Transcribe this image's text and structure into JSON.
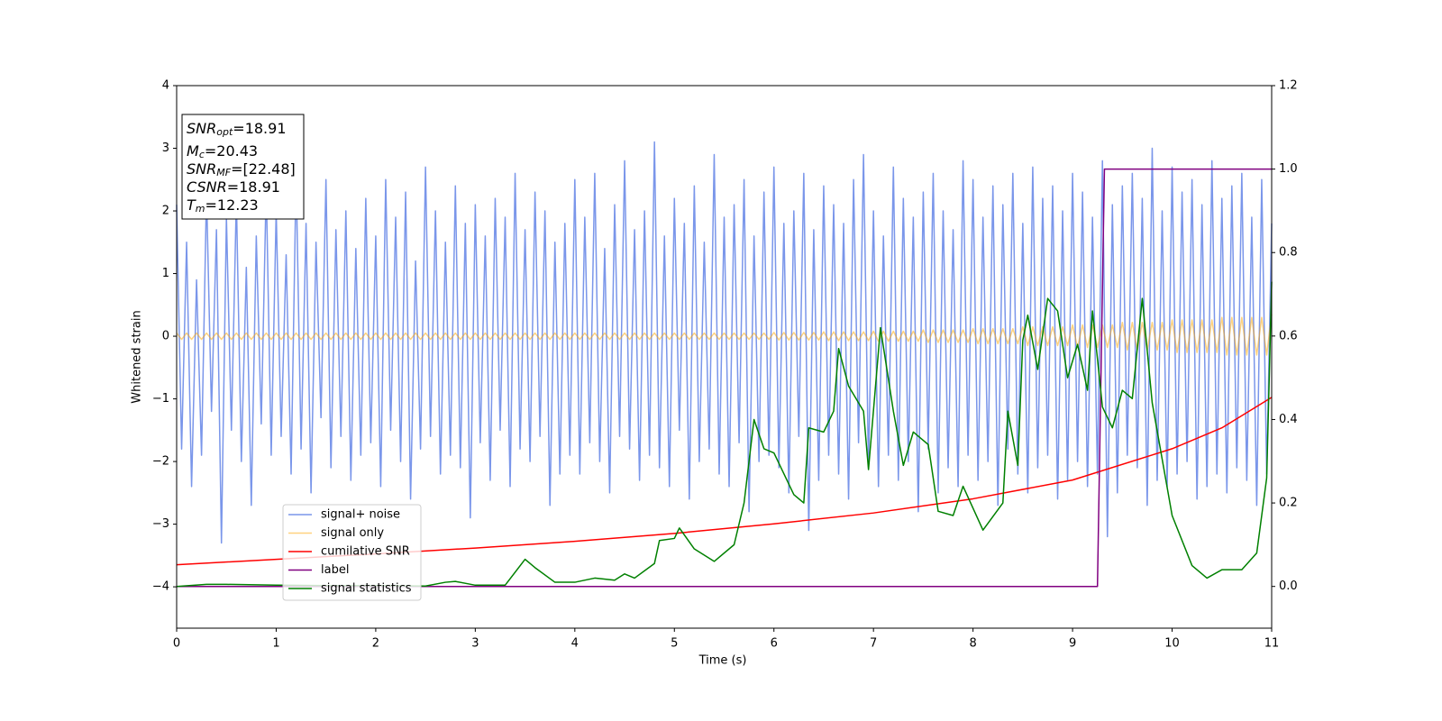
{
  "chart_data": {
    "type": "line",
    "xlabel": "Time (s)",
    "ylabel": "Whitened strain",
    "xlim": [
      0,
      11
    ],
    "ylim": [
      -4.66,
      4
    ],
    "y2lim": [
      -0.1,
      1.2
    ],
    "xticks": [
      0,
      1,
      2,
      3,
      4,
      5,
      6,
      7,
      8,
      9,
      10,
      11
    ],
    "yticks": [
      {
        "value": -4,
        "label": "−4"
      },
      {
        "value": -3,
        "label": "−3"
      },
      {
        "value": -2,
        "label": "−2"
      },
      {
        "value": -1,
        "label": "−1"
      },
      0,
      1,
      2,
      3,
      4
    ],
    "y2ticks": [
      {
        "value": 0,
        "label": "0.0"
      },
      0.2,
      0.4,
      0.6,
      0.8,
      {
        "value": 1,
        "label": "1.0"
      },
      1.2
    ],
    "grid": false,
    "x": [
      0,
      0.05,
      0.1,
      0.15,
      0.2,
      0.25,
      0.3,
      0.35,
      0.4,
      0.45,
      0.5,
      0.55,
      0.6,
      0.65,
      0.7,
      0.75,
      0.8,
      0.85,
      0.9,
      0.95,
      1,
      1.05,
      1.1,
      1.15,
      1.2,
      1.25,
      1.3,
      1.35,
      1.4,
      1.45,
      1.5,
      1.55,
      1.6,
      1.65,
      1.7,
      1.75,
      1.8,
      1.85,
      1.9,
      1.95,
      2,
      2.05,
      2.1,
      2.15,
      2.2,
      2.25,
      2.3,
      2.35,
      2.4,
      2.45,
      2.5,
      2.55,
      2.6,
      2.65,
      2.7,
      2.75,
      2.8,
      2.85,
      2.9,
      2.95,
      3,
      3.05,
      3.1,
      3.15,
      3.2,
      3.25,
      3.3,
      3.35,
      3.4,
      3.45,
      3.5,
      3.55,
      3.6,
      3.65,
      3.7,
      3.75,
      3.8,
      3.85,
      3.9,
      3.95,
      4,
      4.05,
      4.1,
      4.15,
      4.2,
      4.25,
      4.3,
      4.35,
      4.4,
      4.45,
      4.5,
      4.55,
      4.6,
      4.65,
      4.7,
      4.75,
      4.8,
      4.85,
      4.9,
      4.95,
      5,
      5.05,
      5.1,
      5.15,
      5.2,
      5.25,
      5.3,
      5.35,
      5.4,
      5.45,
      5.5,
      5.55,
      5.6,
      5.65,
      5.7,
      5.75,
      5.8,
      5.85,
      5.9,
      5.95,
      6,
      6.05,
      6.1,
      6.15,
      6.2,
      6.25,
      6.3,
      6.35,
      6.4,
      6.45,
      6.5,
      6.55,
      6.6,
      6.65,
      6.7,
      6.75,
      6.8,
      6.85,
      6.9,
      6.95,
      7,
      7.05,
      7.1,
      7.15,
      7.2,
      7.25,
      7.3,
      7.35,
      7.4,
      7.45,
      7.5,
      7.55,
      7.6,
      7.65,
      7.7,
      7.75,
      7.8,
      7.85,
      7.9,
      7.95,
      8,
      8.05,
      8.1,
      8.15,
      8.2,
      8.25,
      8.3,
      8.35,
      8.4,
      8.45,
      8.5,
      8.55,
      8.6,
      8.65,
      8.7,
      8.75,
      8.8,
      8.85,
      8.9,
      8.95,
      9,
      9.05,
      9.1,
      9.15,
      9.2,
      9.25,
      9.3,
      9.35,
      9.4,
      9.45,
      9.5,
      9.55,
      9.6,
      9.65,
      9.7,
      9.75,
      9.8,
      9.85,
      9.9,
      9.95,
      10,
      10.05,
      10.1,
      10.15,
      10.2,
      10.25,
      10.3,
      10.35,
      10.4,
      10.45,
      10.5,
      10.55,
      10.6,
      10.65,
      10.7,
      10.75,
      10.8,
      10.85,
      10.9,
      10.95,
      11
    ],
    "series": [
      {
        "name": "signal+ noise",
        "color": "#4169e1",
        "alpha": 0.7,
        "axis": "y",
        "values": [
          2.1,
          -1.8,
          1.5,
          -2.4,
          0.9,
          -1.9,
          2.3,
          -1.2,
          1.7,
          -3.3,
          1.9,
          -1.5,
          2.2,
          -2.0,
          1.1,
          -2.7,
          1.6,
          -1.4,
          2.4,
          -1.9,
          2.0,
          -1.6,
          1.3,
          -2.2,
          2.6,
          -1.8,
          1.8,
          -2.5,
          1.5,
          -1.3,
          2.5,
          -2.1,
          1.7,
          -1.6,
          2.0,
          -2.3,
          1.4,
          -1.9,
          2.2,
          -1.7,
          1.6,
          -2.4,
          2.5,
          -1.5,
          1.9,
          -2.0,
          2.3,
          -2.6,
          1.2,
          -1.8,
          2.7,
          -1.6,
          2.0,
          -2.2,
          1.5,
          -1.9,
          2.4,
          -2.1,
          1.8,
          -2.9,
          2.1,
          -1.7,
          1.6,
          -2.3,
          2.2,
          -1.5,
          1.9,
          -2.4,
          2.6,
          -1.8,
          1.7,
          -2.0,
          2.3,
          -1.6,
          2.0,
          -2.7,
          1.5,
          -2.2,
          1.8,
          -1.9,
          2.5,
          -2.2,
          1.9,
          -1.7,
          2.6,
          -2.0,
          1.4,
          -2.5,
          2.1,
          -1.6,
          2.8,
          -1.8,
          1.7,
          -2.3,
          2.0,
          -1.9,
          3.1,
          -2.1,
          1.6,
          -2.4,
          2.2,
          -1.5,
          1.8,
          -2.6,
          2.4,
          -2.0,
          1.5,
          -1.8,
          2.9,
          -2.2,
          1.9,
          -2.4,
          2.1,
          -1.7,
          2.5,
          -2.8,
          1.6,
          -2.0,
          2.3,
          -1.9,
          2.7,
          -2.1,
          1.8,
          -2.5,
          2.0,
          -1.6,
          2.6,
          -3.1,
          1.7,
          -2.3,
          2.4,
          -1.9,
          2.1,
          -2.2,
          1.8,
          -2.6,
          2.5,
          -1.7,
          2.9,
          -2.1,
          2.0,
          -2.4,
          1.6,
          -1.9,
          2.7,
          -2.3,
          2.2,
          -2.0,
          1.9,
          -2.8,
          2.3,
          -1.8,
          2.6,
          -2.5,
          2.0,
          -2.1,
          1.7,
          -2.4,
          2.8,
          -1.9,
          2.5,
          -2.3,
          1.9,
          -2.0,
          2.4,
          -2.7,
          2.1,
          -1.8,
          2.6,
          -2.2,
          1.8,
          -2.5,
          2.7,
          -2.1,
          2.2,
          -1.9,
          2.4,
          -2.6,
          2.0,
          -2.3,
          2.6,
          -2.0,
          2.3,
          -2.4,
          1.9,
          -2.2,
          2.8,
          -3.2,
          2.1,
          -2.5,
          2.4,
          -1.9,
          2.6,
          -2.1,
          2.2,
          -2.7,
          3.0,
          -2.3,
          2.0,
          -2.4,
          2.7,
          -2.2,
          2.3,
          -2.0,
          2.5,
          -2.6,
          2.1,
          -2.4,
          2.8,
          -2.2,
          2.2,
          -2.5,
          2.4,
          -2.1,
          2.6,
          -2.3,
          1.9,
          -2.7,
          2.5,
          -2.2,
          1.8
        ]
      },
      {
        "name": "signal only",
        "color": "#ffa500",
        "alpha": 0.5,
        "axis": "y",
        "values": [
          0.05,
          -0.05,
          0.05,
          -0.05,
          0.05,
          -0.05,
          0.05,
          -0.05,
          0.05,
          -0.05,
          0.05,
          -0.05,
          0.05,
          -0.05,
          0.05,
          -0.05,
          0.05,
          -0.05,
          0.05,
          -0.05,
          0.05,
          -0.05,
          0.05,
          -0.05,
          0.05,
          -0.05,
          0.05,
          -0.05,
          0.05,
          -0.05,
          0.05,
          -0.05,
          0.05,
          -0.05,
          0.05,
          -0.05,
          0.05,
          -0.05,
          0.05,
          -0.05,
          0.05,
          -0.05,
          0.05,
          -0.05,
          0.05,
          -0.05,
          0.05,
          -0.05,
          0.05,
          -0.05,
          0.05,
          -0.05,
          0.05,
          -0.05,
          0.05,
          -0.05,
          0.05,
          -0.05,
          0.05,
          -0.05,
          0.05,
          -0.05,
          0.05,
          -0.05,
          0.05,
          -0.05,
          0.05,
          -0.05,
          0.05,
          -0.05,
          0.05,
          -0.05,
          0.05,
          -0.05,
          0.05,
          -0.05,
          0.05,
          -0.05,
          0.05,
          -0.05,
          0.05,
          -0.05,
          0.05,
          -0.05,
          0.05,
          -0.05,
          0.05,
          -0.05,
          0.05,
          -0.05,
          0.05,
          -0.05,
          0.05,
          -0.05,
          0.05,
          -0.05,
          0.05,
          -0.05,
          0.05,
          -0.05,
          0.05,
          -0.05,
          0.05,
          -0.05,
          0.05,
          -0.05,
          0.05,
          -0.05,
          0.05,
          -0.05,
          0.05,
          -0.05,
          0.05,
          -0.05,
          0.05,
          -0.05,
          0.05,
          -0.05,
          0.05,
          -0.05,
          0.06,
          -0.06,
          0.06,
          -0.06,
          0.06,
          -0.06,
          0.06,
          -0.06,
          0.06,
          -0.06,
          0.07,
          -0.07,
          0.07,
          -0.07,
          0.07,
          -0.07,
          0.07,
          -0.07,
          0.07,
          -0.07,
          0.08,
          -0.08,
          0.08,
          -0.08,
          0.08,
          -0.08,
          0.08,
          -0.08,
          0.08,
          -0.08,
          0.1,
          -0.1,
          0.1,
          -0.1,
          0.1,
          -0.1,
          0.1,
          -0.1,
          0.1,
          -0.1,
          0.12,
          -0.12,
          0.12,
          -0.12,
          0.12,
          -0.12,
          0.12,
          -0.12,
          0.12,
          -0.12,
          0.15,
          -0.15,
          0.15,
          -0.15,
          0.15,
          -0.15,
          0.15,
          -0.15,
          0.15,
          -0.15,
          0.18,
          -0.18,
          0.18,
          -0.18,
          0.18,
          -0.18,
          0.18,
          -0.18,
          0.18,
          -0.18,
          0.22,
          -0.22,
          0.22,
          -0.22,
          0.22,
          -0.22,
          0.22,
          -0.22,
          0.22,
          -0.22,
          0.26,
          -0.26,
          0.26,
          -0.26,
          0.26,
          -0.26,
          0.26,
          -0.26,
          0.26,
          -0.26,
          0.3,
          -0.3,
          0.3,
          -0.3,
          0.3,
          -0.3,
          0.3,
          -0.3,
          0.3,
          -0.3,
          0.35
        ]
      },
      {
        "name": "cumilative SNR",
        "color": "#ff0000",
        "alpha": 1,
        "axis": "y2",
        "x": [
          0,
          1,
          2,
          3,
          4,
          5,
          6,
          7,
          8,
          9,
          10,
          10.5,
          11
        ],
        "values": [
          0.052,
          0.065,
          0.078,
          0.092,
          0.108,
          0.127,
          0.15,
          0.176,
          0.21,
          0.255,
          0.33,
          0.38,
          0.453
        ]
      },
      {
        "name": "label",
        "color": "#800080",
        "alpha": 1,
        "axis": "y2",
        "x": [
          0,
          9.25,
          9.32,
          11
        ],
        "values": [
          0,
          0,
          1,
          1
        ]
      },
      {
        "name": "signal statistics",
        "color": "#008000",
        "alpha": 1,
        "axis": "y2",
        "x": [
          0,
          0.3,
          0.5,
          1,
          1.5,
          2,
          2.5,
          2.7,
          2.8,
          3,
          3.3,
          3.5,
          3.6,
          3.8,
          4,
          4.2,
          4.4,
          4.5,
          4.6,
          4.8,
          4.85,
          5,
          5.05,
          5.2,
          5.4,
          5.6,
          5.7,
          5.8,
          5.9,
          6,
          6.2,
          6.3,
          6.35,
          6.5,
          6.6,
          6.65,
          6.75,
          6.9,
          6.95,
          7.07,
          7.2,
          7.3,
          7.4,
          7.55,
          7.65,
          7.8,
          7.9,
          8.1,
          8.3,
          8.35,
          8.45,
          8.5,
          8.55,
          8.65,
          8.75,
          8.85,
          8.95,
          9.05,
          9.15,
          9.2,
          9.3,
          9.4,
          9.5,
          9.6,
          9.7,
          9.8,
          10,
          10.2,
          10.35,
          10.5,
          10.7,
          10.85,
          10.95,
          11
        ],
        "values": [
          0,
          0.005,
          0.005,
          0.003,
          0.002,
          0.002,
          0.001,
          0.01,
          0.012,
          0.003,
          0.003,
          0.065,
          0.045,
          0.01,
          0.01,
          0.02,
          0.015,
          0.03,
          0.02,
          0.055,
          0.11,
          0.115,
          0.14,
          0.09,
          0.06,
          0.1,
          0.2,
          0.4,
          0.33,
          0.32,
          0.22,
          0.2,
          0.38,
          0.37,
          0.42,
          0.57,
          0.48,
          0.42,
          0.28,
          0.62,
          0.42,
          0.29,
          0.37,
          0.34,
          0.18,
          0.17,
          0.24,
          0.135,
          0.2,
          0.42,
          0.29,
          0.59,
          0.65,
          0.52,
          0.69,
          0.66,
          0.5,
          0.58,
          0.47,
          0.66,
          0.43,
          0.38,
          0.47,
          0.45,
          0.69,
          0.44,
          0.17,
          0.05,
          0.02,
          0.04,
          0.04,
          0.08,
          0.26,
          0.73
        ]
      }
    ],
    "annotation_box": [
      {
        "symbol": "SNR",
        "subscript": "opt",
        "text": "=18.91"
      },
      {
        "symbol": "M",
        "subscript": "c",
        "text": "=20.43"
      },
      {
        "symbol": "SNR",
        "subscript": "MF",
        "text": "=[22.48]"
      },
      {
        "symbol": "CSNR",
        "text": "=18.91"
      },
      {
        "symbol": "T",
        "subscript": "m",
        "text": "=12.23"
      }
    ]
  }
}
